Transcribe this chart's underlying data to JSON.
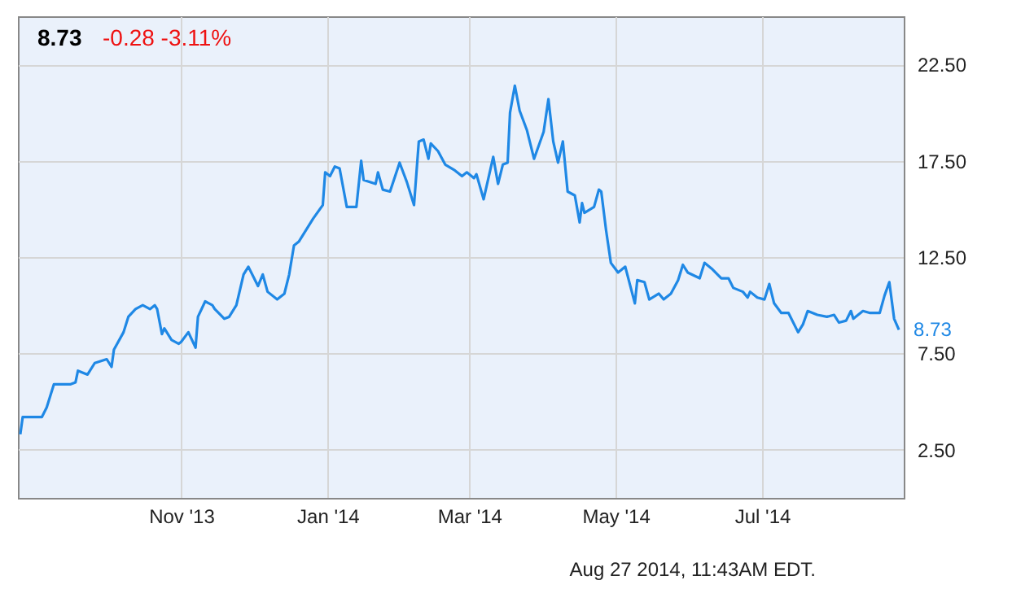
{
  "chart_data": {
    "type": "line",
    "title": "8.73",
    "subtitle": "-0.28  -3.11%",
    "x": [
      "2013-08-26",
      "2013-08-27",
      "2013-09-04",
      "2013-09-06",
      "2013-09-09",
      "2013-09-16",
      "2013-09-18",
      "2013-09-19",
      "2013-09-23",
      "2013-09-26",
      "2013-10-01",
      "2013-10-03",
      "2013-10-04",
      "2013-10-08",
      "2013-10-10",
      "2013-10-13",
      "2013-10-16",
      "2013-10-19",
      "2013-10-21",
      "2013-10-22",
      "2013-10-24",
      "2013-10-25",
      "2013-10-28",
      "2013-10-31",
      "2013-11-01",
      "2013-11-04",
      "2013-11-07",
      "2013-11-08",
      "2013-11-11",
      "2013-11-14",
      "2013-11-15",
      "2013-11-19",
      "2013-11-21",
      "2013-11-24",
      "2013-11-27",
      "2013-11-29",
      "2013-12-03",
      "2013-12-05",
      "2013-12-07",
      "2013-12-11",
      "2013-12-14",
      "2013-12-16",
      "2013-12-18",
      "2013-12-20",
      "2013-12-26",
      "2013-12-30",
      "2013-12-31",
      "2014-01-02",
      "2014-01-04",
      "2014-01-06",
      "2014-01-09",
      "2014-01-13",
      "2014-01-15",
      "2014-01-16",
      "2014-01-21",
      "2014-01-22",
      "2014-01-24",
      "2014-01-27",
      "2014-01-31",
      "2014-02-03",
      "2014-02-06",
      "2014-02-08",
      "2014-02-10",
      "2014-02-12",
      "2014-02-13",
      "2014-02-16",
      "2014-02-19",
      "2014-02-23",
      "2014-02-26",
      "2014-02-28",
      "2014-03-03",
      "2014-03-04",
      "2014-03-07",
      "2014-03-11",
      "2014-03-13",
      "2014-03-15",
      "2014-03-17",
      "2014-03-18",
      "2014-03-20",
      "2014-03-22",
      "2014-03-25",
      "2014-03-28",
      "2014-04-01",
      "2014-04-03",
      "2014-04-05",
      "2014-04-07",
      "2014-04-09",
      "2014-04-11",
      "2014-04-14",
      "2014-04-16",
      "2014-04-17",
      "2014-04-18",
      "2014-04-22",
      "2014-04-24",
      "2014-04-25",
      "2014-04-27",
      "2014-04-29",
      "2014-05-02",
      "2014-05-05",
      "2014-05-09",
      "2014-05-10",
      "2014-05-13",
      "2014-05-15",
      "2014-05-19",
      "2014-05-21",
      "2014-05-24",
      "2014-05-27",
      "2014-05-29",
      "2014-05-31",
      "2014-06-05",
      "2014-06-07",
      "2014-06-10",
      "2014-06-14",
      "2014-06-17",
      "2014-06-19",
      "2014-06-23",
      "2014-06-25",
      "2014-06-26",
      "2014-06-29",
      "2014-07-02",
      "2014-07-04",
      "2014-07-06",
      "2014-07-09",
      "2014-07-12",
      "2014-07-16",
      "2014-07-18",
      "2014-07-20",
      "2014-07-24",
      "2014-07-28",
      "2014-07-31",
      "2014-08-02",
      "2014-08-05",
      "2014-08-07",
      "2014-08-08",
      "2014-08-12",
      "2014-08-15",
      "2014-08-19",
      "2014-08-21",
      "2014-08-23",
      "2014-08-25",
      "2014-08-27"
    ],
    "series": [
      {
        "color": "#1f88e5",
        "values": [
          3.3,
          4.2,
          4.2,
          4.7,
          5.9,
          5.9,
          6.0,
          6.6,
          6.4,
          7.0,
          7.2,
          6.8,
          7.7,
          8.6,
          9.4,
          9.8,
          10.0,
          9.8,
          10.0,
          9.8,
          8.5,
          8.8,
          8.2,
          8.0,
          8.1,
          8.6,
          7.8,
          9.4,
          10.2,
          10.0,
          9.8,
          9.3,
          9.4,
          10.0,
          11.6,
          12.0,
          11.0,
          11.6,
          10.7,
          10.3,
          10.6,
          11.6,
          13.1,
          13.3,
          14.5,
          15.2,
          16.9,
          16.7,
          17.2,
          17.1,
          15.1,
          15.1,
          17.5,
          16.5,
          16.3,
          16.9,
          16.0,
          15.9,
          17.4,
          16.4,
          15.2,
          18.5,
          18.6,
          17.6,
          18.4,
          18.0,
          17.3,
          17.0,
          16.7,
          16.9,
          16.6,
          16.8,
          15.5,
          17.7,
          16.3,
          17.3,
          17.4,
          20.0,
          21.4,
          20.1,
          19.1,
          17.6,
          19.0,
          20.7,
          18.5,
          17.4,
          18.5,
          15.9,
          15.7,
          14.3,
          15.3,
          14.8,
          15.1,
          16.0,
          15.9,
          13.9,
          12.2,
          11.7,
          12.0,
          10.1,
          11.3,
          11.2,
          10.3,
          10.6,
          10.3,
          10.6,
          11.3,
          12.1,
          11.7,
          11.4,
          12.2,
          11.9,
          11.4,
          11.4,
          10.9,
          10.7,
          10.4,
          10.7,
          10.4,
          10.3,
          11.1,
          10.1,
          9.6,
          9.6,
          8.6,
          9.0,
          9.7,
          9.5,
          9.4,
          9.5,
          9.1,
          9.2,
          9.7,
          9.3,
          9.7,
          9.6,
          9.6,
          10.5,
          11.2,
          9.3,
          8.73
        ]
      }
    ],
    "xlim": [
      "2013-08-25",
      "2014-08-29"
    ],
    "xticks": [
      {
        "value": "2013-11-01",
        "label": "Nov '13"
      },
      {
        "value": "2014-01-01",
        "label": "Jan '14"
      },
      {
        "value": "2014-03-01",
        "label": "Mar '14"
      },
      {
        "value": "2014-05-01",
        "label": "May '14"
      },
      {
        "value": "2014-07-01",
        "label": "Jul '14"
      }
    ],
    "ylim": [
      0,
      25
    ],
    "yticks": [
      {
        "value": 2.5,
        "label": "2.50"
      },
      {
        "value": 7.5,
        "label": "7.50"
      },
      {
        "value": 12.5,
        "label": "12.50"
      },
      {
        "value": 17.5,
        "label": "17.50"
      },
      {
        "value": 22.5,
        "label": "22.50"
      }
    ],
    "grid": true,
    "line_style": "solid",
    "annotations": [
      {
        "text": "8.73",
        "x": "2014-08-27",
        "y": 8.73
      },
      "Aug 27 2014, 11:43AM EDT."
    ]
  }
}
